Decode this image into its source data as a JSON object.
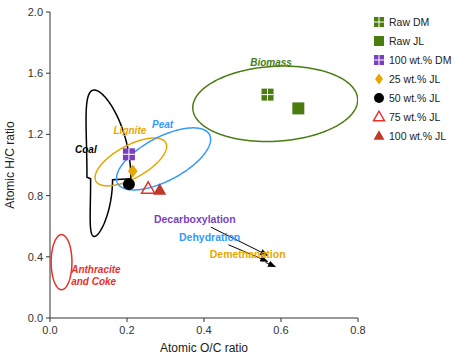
{
  "chart_data": {
    "type": "scatter",
    "xlabel": "Atomic O/C ratio",
    "ylabel": "Atomic H/C ratio",
    "xlim": [
      0,
      0.8
    ],
    "ylim": [
      0,
      2.0
    ],
    "xticks": [
      {
        "value": 0,
        "label": "0.0"
      },
      0.2,
      0.4,
      0.6,
      0.8
    ],
    "yticks": [
      {
        "value": 0,
        "label": "0.0"
      },
      0.4,
      0.8,
      1.2,
      1.6,
      {
        "value": 2.0,
        "label": "2.0"
      }
    ],
    "grid": false,
    "legend": "right",
    "series": [
      {
        "name": "Raw DM",
        "color": "#4a7c10",
        "marker": "square-cross",
        "x": [
          0.565
        ],
        "values": [
          1.46
        ]
      },
      {
        "name": "Raw JL",
        "color": "#4a7c10",
        "marker": "square",
        "x": [
          0.645
        ],
        "values": [
          1.37
        ]
      },
      {
        "name": "100 wt.% DM",
        "color": "#7b3fbe",
        "marker": "square-cross",
        "x": [
          0.205
        ],
        "values": [
          1.07
        ]
      },
      {
        "name": "25 wt.% JL",
        "color": "#e6a800",
        "marker": "diamond",
        "x": [
          0.215
        ],
        "values": [
          0.96
        ]
      },
      {
        "name": "50 wt.% JL",
        "color": "#000000",
        "marker": "circle",
        "x": [
          0.205
        ],
        "values": [
          0.875
        ]
      },
      {
        "name": "75 wt.% JL",
        "color": "#e8302a",
        "marker": "triangle-open",
        "x": [
          0.255
        ],
        "values": [
          0.845
        ]
      },
      {
        "name": "100 wt.% JL",
        "color": "#c0392b",
        "marker": "triangle",
        "x": [
          0.285
        ],
        "values": [
          0.835
        ]
      }
    ],
    "regions": [
      {
        "label": "Coal",
        "shape": "teardrop",
        "cx": 0.115,
        "cy": 0.91,
        "rx": 0.095,
        "ry": 0.58,
        "color": "#000000",
        "label_x": 0.065,
        "label_y": 1.08
      },
      {
        "label": "Anthracite\nand Coke",
        "shape": "ellipse",
        "cx": 0.03,
        "cy": 0.365,
        "width": 0.054,
        "height": 0.36,
        "angle": 0,
        "color": "#e8302a",
        "label_x": 0.055,
        "label_y": 0.295
      },
      {
        "label": "Lignite",
        "shape": "ellipse",
        "cx": 0.21,
        "cy": 1.02,
        "width": 0.13,
        "height": 0.34,
        "angle": -25,
        "color": "#e6a800",
        "label_x": 0.165,
        "label_y": 1.2
      },
      {
        "label": "Peat",
        "shape": "ellipse",
        "cx": 0.295,
        "cy": 1.04,
        "width": 0.175,
        "height": 0.44,
        "angle": -25,
        "color": "#3399ff",
        "label_x": 0.265,
        "label_y": 1.24
      },
      {
        "label": "Biomass",
        "shape": "ellipse",
        "cx": 0.585,
        "cy": 1.4,
        "width": 0.42,
        "height": 0.5,
        "angle": -18,
        "color": "#4a7c10",
        "label_x": 0.52,
        "label_y": 1.65
      }
    ],
    "annotations": [
      {
        "text": "Decarboxylation",
        "x": 0.27,
        "y": 0.62,
        "arrow_x": 0.565,
        "arrow_y": 0.41,
        "color": "#7b3fbe"
      },
      {
        "text": "Dehydration",
        "x": 0.335,
        "y": 0.505,
        "arrow_x": 0.565,
        "arrow_y": 0.37,
        "color": "#3399ff"
      },
      {
        "text": "Demethanation",
        "x": 0.415,
        "y": 0.39,
        "arrow_x": 0.585,
        "arrow_y": 0.335,
        "color": "#e6a800"
      }
    ]
  }
}
